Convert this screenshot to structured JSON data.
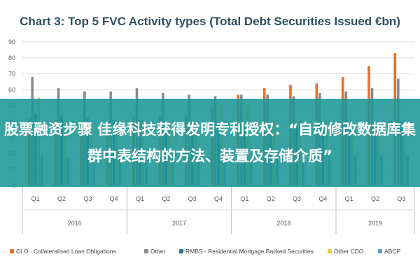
{
  "chart_data": {
    "type": "bar",
    "title": "Chart 3: Top 5 FVC Activity types (Total Debt Securities Issued €bn)",
    "xlabel": "",
    "ylabel": "",
    "ylim": [
      0,
      90
    ],
    "yticks": [
      0,
      10,
      20,
      30,
      40,
      50,
      60,
      70,
      80,
      90
    ],
    "grid": true,
    "legend_position": "bottom",
    "categories": [
      "Q1",
      "Q2",
      "Q3",
      "Q4",
      "Q1",
      "Q2",
      "Q3",
      "Q4",
      "Q1",
      "Q2",
      "Q3",
      "Q4",
      "Q1",
      "Q2",
      "Q3"
    ],
    "groups": [
      {
        "label": "2016",
        "categories": [
          0,
          3
        ]
      },
      {
        "label": "2017",
        "categories": [
          4,
          7
        ]
      },
      {
        "label": "2018",
        "categories": [
          8,
          11
        ]
      },
      {
        "label": "2019",
        "categories": [
          12,
          14
        ]
      }
    ],
    "series": [
      {
        "name": "CLO - Collateralised Loan Obligations",
        "color": "#e8702a",
        "values": [
          42,
          41,
          40,
          40,
          43,
          44,
          44,
          49,
          57,
          61,
          63,
          64,
          68,
          75,
          83
        ]
      },
      {
        "name": "Other",
        "color": "#8a8a8a",
        "values": [
          68,
          61,
          59,
          59,
          61,
          58,
          57,
          56,
          57,
          57,
          56,
          58,
          59,
          61,
          67
        ]
      },
      {
        "name": "RMBS - Residential Mortgage Backed Securities",
        "color": "#2a6f9c",
        "values": [
          45,
          44,
          42,
          41,
          41,
          40,
          40,
          39,
          38,
          37,
          37,
          36,
          37,
          37,
          40
        ]
      },
      {
        "name": "Other CDO",
        "color": "#f2c341",
        "values": [
          55,
          38,
          37,
          39,
          41,
          38,
          38,
          50,
          50,
          41,
          41,
          41,
          39,
          40,
          41
        ]
      },
      {
        "name": "ABCP",
        "color": "#5b9bd5",
        "values": [
          19,
          18,
          18,
          18,
          17,
          17,
          17,
          17,
          18,
          18,
          18,
          18,
          19,
          19,
          19
        ]
      }
    ]
  },
  "overlay": {
    "headline": "股票融资步骤 佳缘科技获得发明专利授权：“自动修改数据库集群中表结构的方法、装置及存储介质”"
  }
}
